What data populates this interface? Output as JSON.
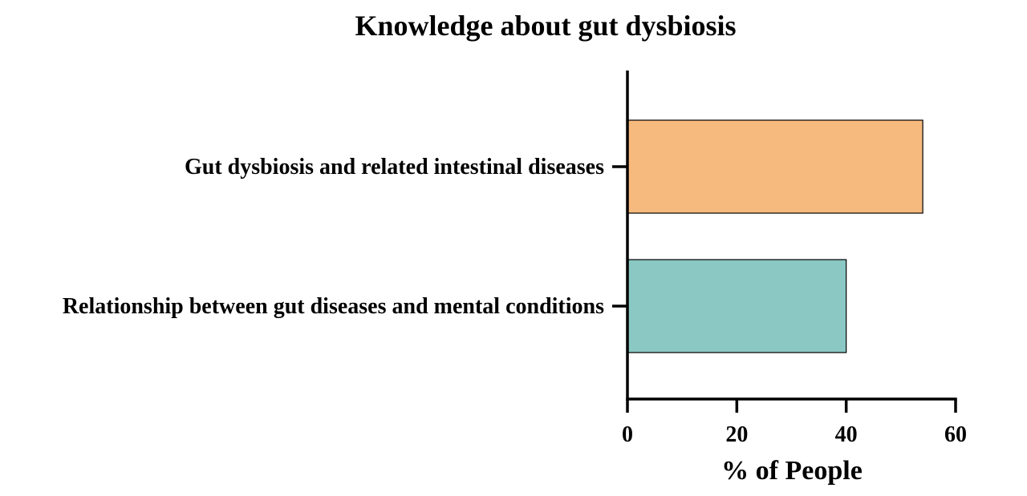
{
  "chart_data": {
    "type": "bar",
    "orientation": "horizontal",
    "title": "Knowledge about gut dysbiosis",
    "xlabel": "% of People",
    "ylabel": "",
    "categories": [
      "Gut dysbiosis and related intestinal diseases",
      "Relationship between gut diseases and mental conditions"
    ],
    "values": [
      54,
      40
    ],
    "bar_colors": [
      "#F6BA7E",
      "#8BC7C3"
    ],
    "xlim": [
      0,
      60
    ],
    "xticks": [
      0,
      20,
      40,
      60
    ],
    "xtick_labels": [
      "0",
      "20",
      "40",
      "60"
    ],
    "grid": false,
    "legend": "none"
  }
}
